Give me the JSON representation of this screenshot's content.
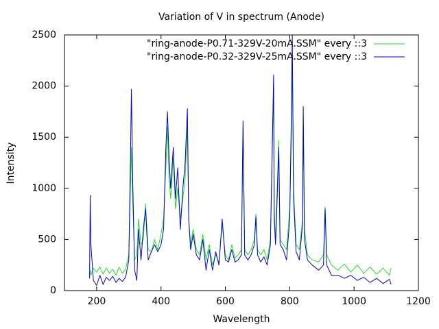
{
  "chart_data": {
    "type": "line",
    "title": "Variation of V in spectrum (Anode)",
    "x_label": "Wavelength",
    "y_label": "Intensity",
    "xlim": [
      100,
      1200
    ],
    "xticks": [
      200,
      400,
      600,
      800,
      1000,
      1200
    ],
    "ylim": [
      0,
      2500
    ],
    "yticks": [
      0,
      500,
      1000,
      1500,
      2000,
      2500
    ],
    "legend": "top-right",
    "x": [
      178,
      180,
      182,
      190,
      200,
      210,
      220,
      230,
      240,
      250,
      260,
      270,
      280,
      290,
      300,
      305,
      308,
      312,
      318,
      325,
      330,
      338,
      345,
      352,
      360,
      370,
      380,
      390,
      400,
      408,
      415,
      420,
      425,
      430,
      438,
      445,
      452,
      460,
      468,
      475,
      482,
      486,
      492,
      500,
      510,
      520,
      530,
      540,
      550,
      560,
      570,
      580,
      590,
      600,
      610,
      620,
      630,
      640,
      650,
      655,
      660,
      670,
      680,
      690,
      695,
      700,
      710,
      720,
      730,
      740,
      750,
      752,
      756,
      760,
      766,
      770,
      780,
      790,
      800,
      805,
      808,
      812,
      820,
      830,
      840,
      842,
      846,
      855,
      870,
      890,
      905,
      910,
      915,
      930,
      950,
      970,
      990,
      1010,
      1030,
      1050,
      1070,
      1090,
      1110,
      1115
    ],
    "series": [
      {
        "name": "\"ring-anode-P0.71-329V-20mA.SSM\" every ::3",
        "color": "#22dd22",
        "values": [
          150,
          200,
          150,
          220,
          180,
          230,
          160,
          220,
          170,
          210,
          150,
          230,
          170,
          210,
          350,
          1000,
          1400,
          900,
          300,
          350,
          700,
          450,
          500,
          850,
          400,
          380,
          500,
          400,
          550,
          700,
          1200,
          1600,
          1100,
          900,
          1300,
          800,
          1000,
          700,
          900,
          1100,
          1600,
          700,
          450,
          600,
          400,
          350,
          550,
          300,
          450,
          250,
          350,
          280,
          650,
          350,
          300,
          450,
          320,
          350,
          400,
          1600,
          400,
          350,
          400,
          500,
          750,
          400,
          350,
          400,
          300,
          500,
          2000,
          800,
          500,
          900,
          1470,
          500,
          450,
          400,
          800,
          1500,
          2300,
          1000,
          450,
          400,
          700,
          1700,
          600,
          350,
          300,
          280,
          350,
          820,
          350,
          250,
          200,
          260,
          180,
          250,
          170,
          230,
          160,
          220,
          150,
          220
        ]
      },
      {
        "name": "\"ring-anode-P0.32-329V-25mA.SSM\" every ::3",
        "color": "#0000cc",
        "values": [
          120,
          930,
          450,
          100,
          50,
          150,
          60,
          130,
          100,
          140,
          80,
          120,
          90,
          130,
          300,
          1300,
          1970,
          1100,
          200,
          100,
          600,
          300,
          600,
          800,
          300,
          380,
          450,
          380,
          450,
          600,
          1400,
          1750,
          1300,
          1000,
          1400,
          900,
          1200,
          600,
          1000,
          1250,
          1780,
          700,
          400,
          550,
          350,
          300,
          500,
          200,
          400,
          200,
          380,
          250,
          700,
          300,
          280,
          400,
          280,
          300,
          350,
          1660,
          350,
          300,
          350,
          450,
          720,
          350,
          280,
          330,
          250,
          450,
          2110,
          700,
          450,
          800,
          1400,
          450,
          400,
          300,
          700,
          1700,
          2500,
          900,
          380,
          300,
          650,
          1800,
          500,
          300,
          250,
          200,
          250,
          800,
          250,
          150,
          150,
          120,
          150,
          100,
          130,
          80,
          120,
          70,
          110,
          60
        ]
      }
    ]
  }
}
